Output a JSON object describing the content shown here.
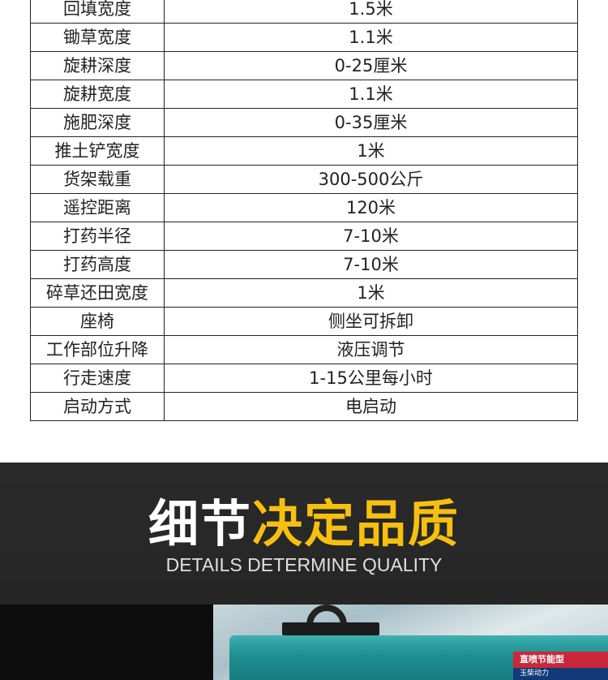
{
  "specs": [
    {
      "name": "回填宽度",
      "value": "1.5米"
    },
    {
      "name": "锄草宽度",
      "value": "1.1米"
    },
    {
      "name": "旋耕深度",
      "value": "0-25厘米"
    },
    {
      "name": "旋耕宽度",
      "value": "1.1米"
    },
    {
      "name": "施肥深度",
      "value": "0-35厘米"
    },
    {
      "name": "推土铲宽度",
      "value": "1米"
    },
    {
      "name": "货架载重",
      "value": "300-500公斤"
    },
    {
      "name": "遥控距离",
      "value": "120米"
    },
    {
      "name": "打药半径",
      "value": "7-10米"
    },
    {
      "name": "打药高度",
      "value": "7-10米"
    },
    {
      "name": "碎草还田宽度",
      "value": "1米"
    },
    {
      "name": "座椅",
      "value": "侧坐可拆卸"
    },
    {
      "name": "工作部位升降",
      "value": "液压调节"
    },
    {
      "name": "行走速度",
      "value": "1-15公里每小时"
    },
    {
      "name": "启动方式",
      "value": "电启动"
    }
  ],
  "banner": {
    "title_white": "细节",
    "title_yellow": "决定品质",
    "subtitle": "DETAILS DETERMINE QUALITY",
    "accent_color": "#f7c010"
  },
  "photo": {
    "label_line1": "直喷节能型",
    "label_line2": "玉柴动力"
  }
}
